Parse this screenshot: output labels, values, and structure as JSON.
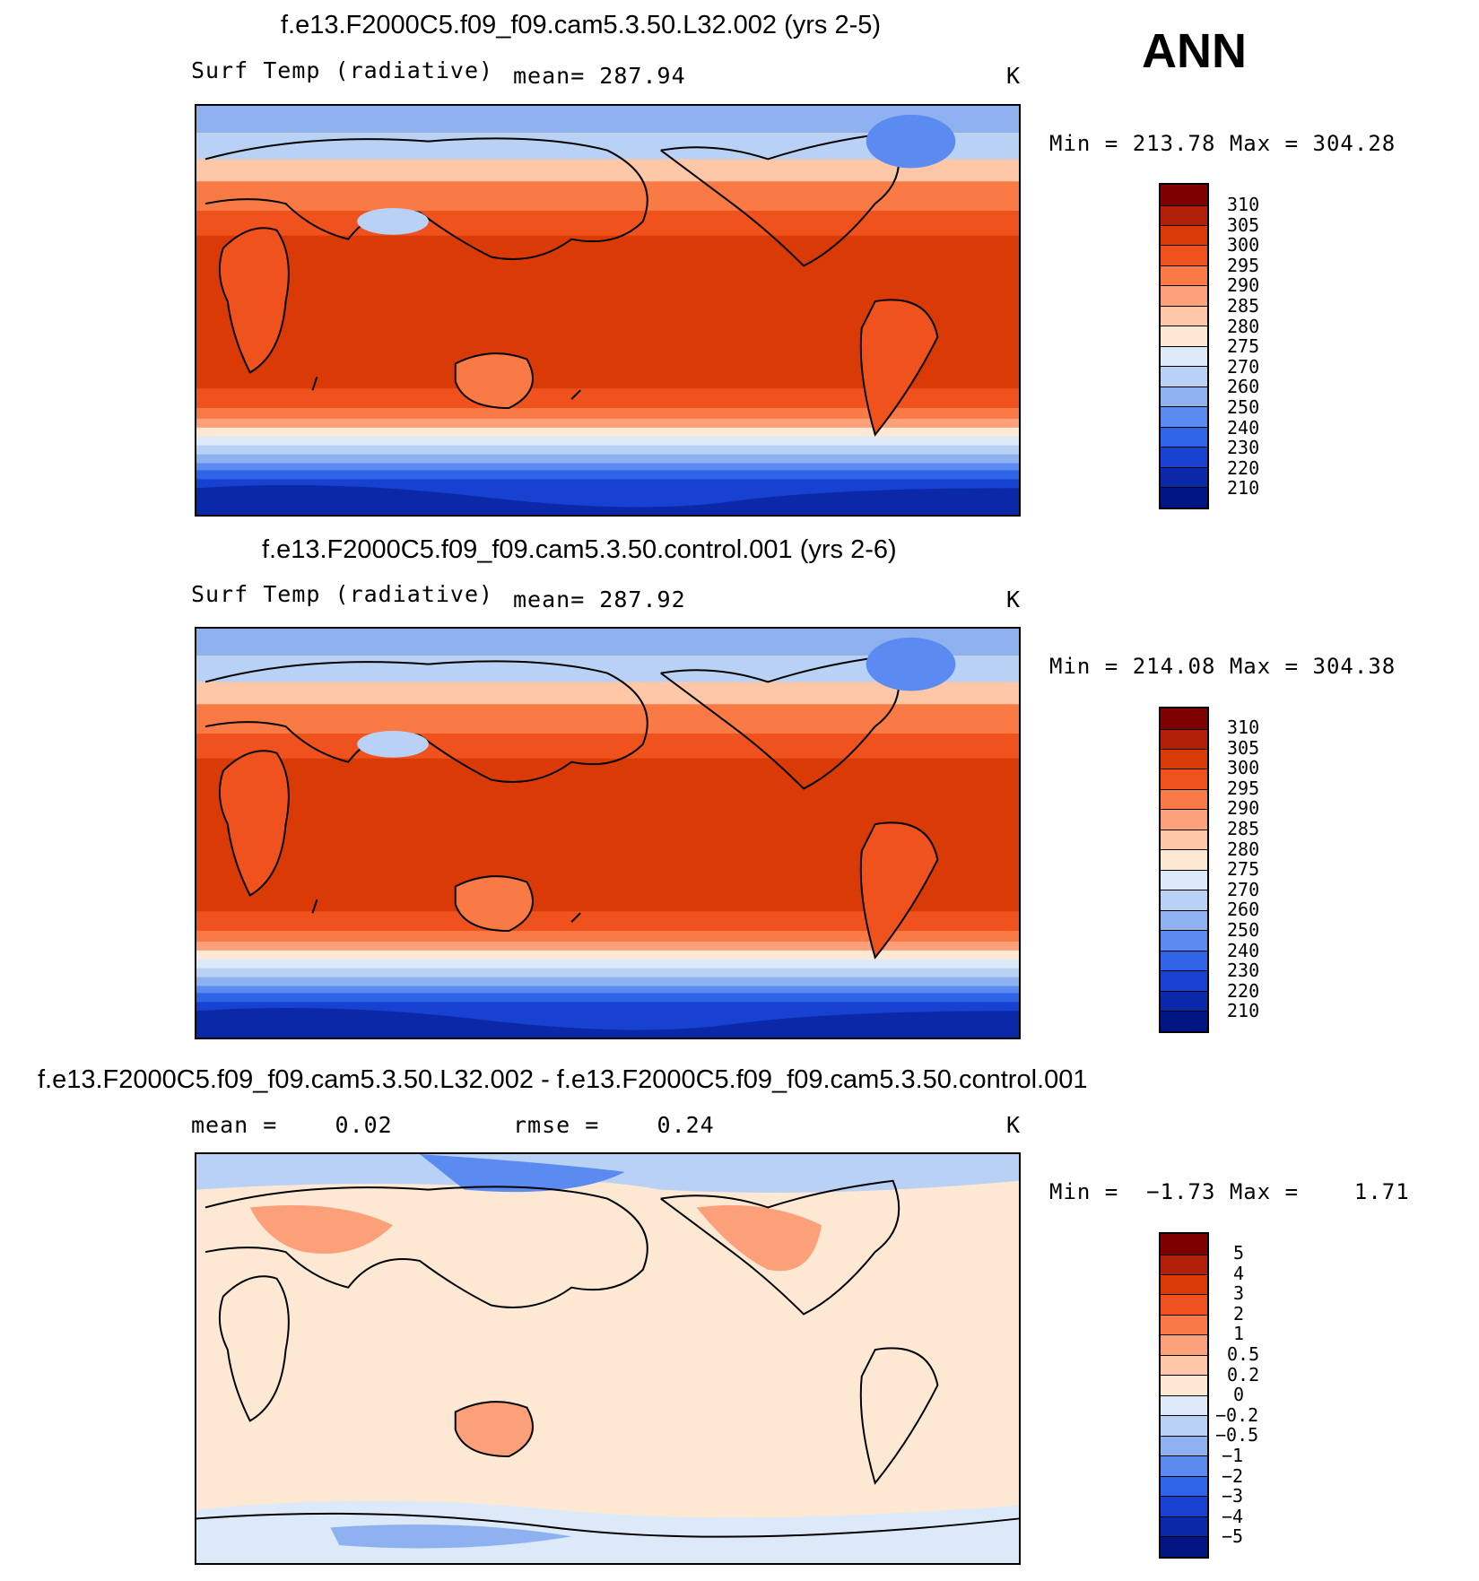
{
  "season": "ANN",
  "unit": "K",
  "panels": [
    {
      "title": "f.e13.F2000C5.f09_f09.cam5.3.50.L32.002 (yrs 2-5)",
      "left_label": "Surf Temp (radiative)",
      "center_label": "mean= 287.94",
      "right_label": "K",
      "minmax": "Min = 213.78 Max = 304.28",
      "colorbar_labels": [
        "310",
        "305",
        "300",
        "295",
        "290",
        "285",
        "280",
        "275",
        "270",
        "260",
        "250",
        "240",
        "230",
        "220",
        "210"
      ]
    },
    {
      "title": "f.e13.F2000C5.f09_f09.cam5.3.50.control.001 (yrs 2-6)",
      "left_label": "Surf Temp (radiative)",
      "center_label": "mean= 287.92",
      "right_label": "K",
      "minmax": "Min = 214.08 Max = 304.38",
      "colorbar_labels": [
        "310",
        "305",
        "300",
        "295",
        "290",
        "285",
        "280",
        "275",
        "270",
        "260",
        "250",
        "240",
        "230",
        "220",
        "210"
      ]
    },
    {
      "title": "f.e13.F2000C5.f09_f09.cam5.3.50.L32.002 - f.e13.F2000C5.f09_f09.cam5.3.50.control.001",
      "left_label": "mean =    0.02",
      "center_label": "rmse =    0.24",
      "right_label": "K",
      "minmax": "Min =  −1.73 Max =    1.71",
      "colorbar_labels": [
        "5",
        "4",
        "3",
        "2",
        "1",
        "0.5",
        "0.2",
        "0",
        "−0.2",
        "−0.5",
        "−1",
        "−2",
        "−3",
        "−4",
        "−5"
      ]
    }
  ],
  "colors": {
    "abs_scale": [
      "#7f0000",
      "#b3200a",
      "#d93a06",
      "#f0521d",
      "#fa7a45",
      "#fca07a",
      "#fdc7a8",
      "#fde8d4",
      "#dbe9f9",
      "#b9d1f4",
      "#8eb2f0",
      "#5b8bf0",
      "#2f63e8",
      "#1741d0",
      "#0a28a8",
      "#001482"
    ],
    "diff_scale": [
      "#7f0000",
      "#b3200a",
      "#d93a06",
      "#f0521d",
      "#fa7a45",
      "#fca07a",
      "#fdc7a8",
      "#fde8d4",
      "#dbe9f9",
      "#b9d1f4",
      "#8eb2f0",
      "#5b8bf0",
      "#2f63e8",
      "#1741d0",
      "#0a28a8",
      "#001482"
    ],
    "ocean_tropical": "#d93a06",
    "land_outline": "#000000"
  }
}
